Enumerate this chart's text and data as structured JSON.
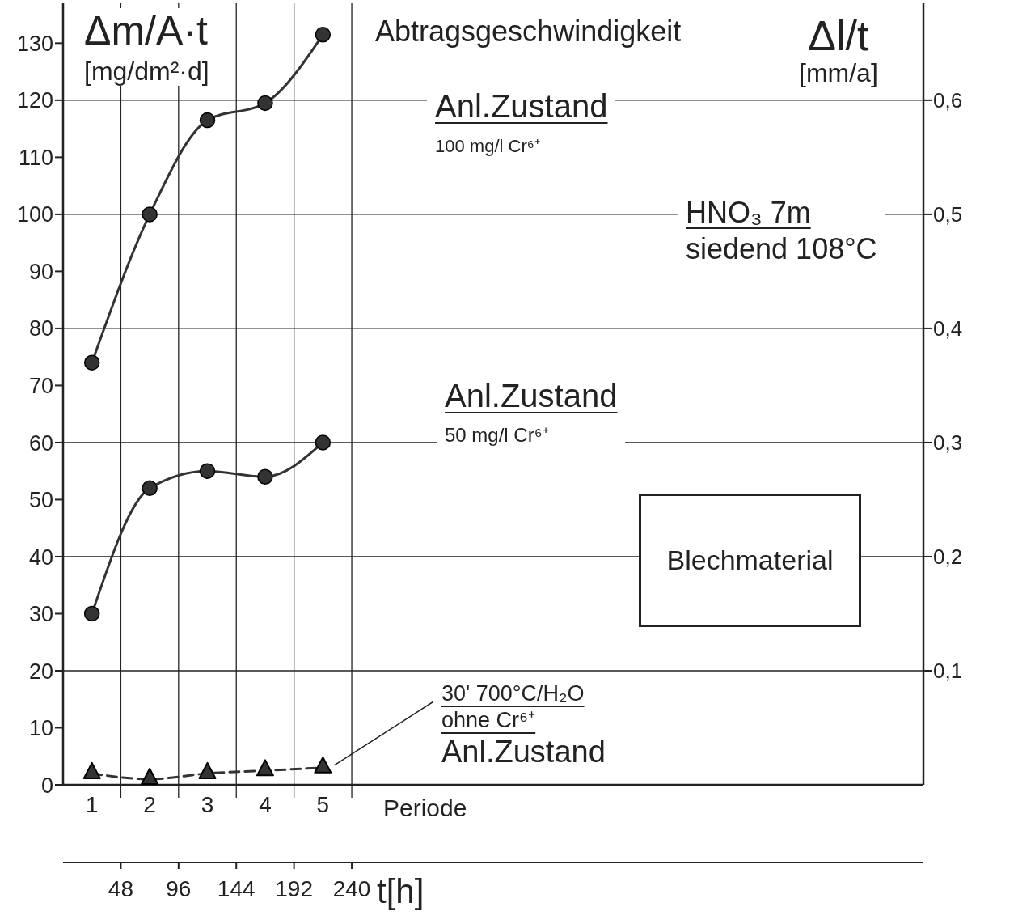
{
  "chart_data": {
    "type": "line",
    "title": "Abtragsgeschwindigkeit",
    "xlabel": "Periode",
    "x2label": "t[h]",
    "ylabel": "Δm/A·t\n[mg/dm²·d]",
    "y2label": "Δl/t\n[mm/a]",
    "x": [
      1,
      2,
      3,
      4,
      5
    ],
    "series": [
      {
        "name": "Anl.Zustand\n100 mg/l Cr⁶⁺",
        "color": "#333333",
        "values": [
          74,
          100,
          116.5,
          119.5,
          131.5
        ],
        "marker": "circle",
        "line_style": "solid"
      },
      {
        "name": "Anl.Zustand\n50 mg/l Cr⁶⁺",
        "color": "#333333",
        "values": [
          30,
          52,
          55,
          54,
          60
        ],
        "marker": "circle",
        "line_style": "solid"
      },
      {
        "name": "30' 700°C/H₂O\nohne Cr⁶⁺\nAnl.Zustand",
        "color": "#333333",
        "values": [
          2,
          1,
          2,
          2.5,
          3
        ],
        "marker": "triangle",
        "line_style": "dashed"
      }
    ],
    "xlim": [
      0.5,
      15.4
    ],
    "xticks": [
      1,
      2,
      3,
      4,
      5
    ],
    "x2lim": [
      0,
      715.2
    ],
    "x2ticks": [
      48,
      96,
      144,
      192,
      240
    ],
    "ylim": [
      0,
      137
    ],
    "yticks": [
      0,
      10,
      20,
      30,
      40,
      50,
      60,
      70,
      80,
      90,
      100,
      110,
      120,
      130
    ],
    "y2lim": [
      0,
      0.685
    ],
    "y2ticks": [
      {
        "value": 0.1,
        "label": "0,1"
      },
      {
        "value": 0.2,
        "label": "0,2"
      },
      {
        "value": 0.3,
        "label": "0,3"
      },
      {
        "value": 0.4,
        "label": "0,4"
      },
      {
        "value": 0.5,
        "label": "0,5"
      },
      {
        "value": 0.6,
        "label": "0,6"
      }
    ],
    "grid": true,
    "annotations": [
      "HNO₃ 7m\nsiedend 108°C",
      "Blechmaterial"
    ]
  }
}
